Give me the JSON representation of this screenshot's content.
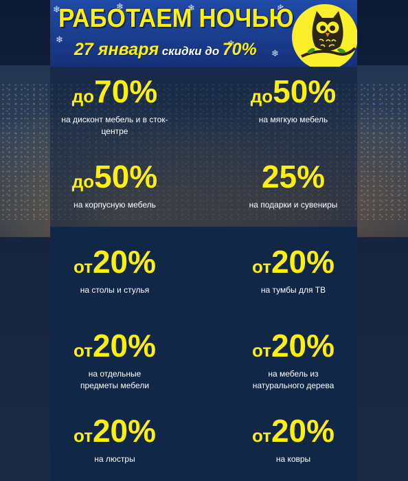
{
  "banner": {
    "title": "РАБОТАЕМ НОЧЬЮ",
    "date": "27 января",
    "discount_text": "скидки до",
    "discount_value": "70%"
  },
  "offers": [
    {
      "prefix": "до",
      "value": "70%",
      "description": "на дисконт мебель и в сток-центре"
    },
    {
      "prefix": "до",
      "value": "50%",
      "description": "на мягкую  мебель"
    },
    {
      "prefix": "до",
      "value": "50%",
      "description": "на корпусную мебель"
    },
    {
      "prefix": "",
      "value": "25%",
      "description": "на подарки и сувениры"
    },
    {
      "prefix": "от",
      "value": "20%",
      "description": "на столы и стулья"
    },
    {
      "prefix": "от",
      "value": "20%",
      "description": "на тумбы для ТВ"
    },
    {
      "prefix": "от",
      "value": "20%",
      "description": "на отдельные предметы мебели"
    },
    {
      "prefix": "от",
      "value": "20%",
      "description": "на мебель из натурального дерева"
    },
    {
      "prefix": "от",
      "value": "20%",
      "description": "на люстры"
    },
    {
      "prefix": "от",
      "value": "20%",
      "description": "на  ковры"
    }
  ],
  "colors": {
    "accent_yellow": "#fff200",
    "banner_blue": "#1f4aa8",
    "background_navy": "#112748",
    "moon_yellow": "#fbee2a"
  },
  "icons": [
    "owl-icon",
    "snowflake-icon",
    "moon-icon"
  ]
}
